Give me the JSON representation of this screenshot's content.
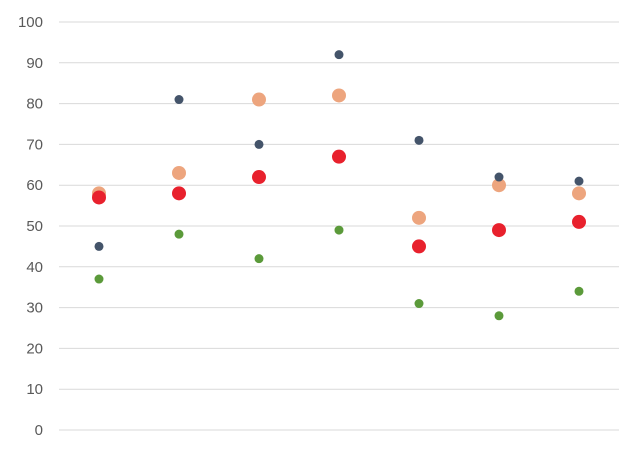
{
  "chart_data": {
    "type": "scatter",
    "title": "",
    "xlabel": "",
    "ylabel": "",
    "ylim": [
      0,
      100
    ],
    "yticks": [
      0,
      10,
      20,
      30,
      40,
      50,
      60,
      70,
      80,
      90,
      100
    ],
    "grid": true,
    "legend": "none",
    "x": [
      1,
      2,
      3,
      4,
      5,
      6,
      7
    ],
    "series": [
      {
        "color": "#eda57e",
        "marker": "large",
        "values": [
          58,
          63,
          81,
          82,
          52,
          60,
          58
        ]
      },
      {
        "color": "#e8212d",
        "marker": "large",
        "values": [
          57,
          58,
          62,
          67,
          45,
          49,
          51
        ]
      },
      {
        "color": "#44546a",
        "marker": "small",
        "values": [
          45,
          81,
          70,
          92,
          71,
          62,
          61
        ]
      },
      {
        "color": "#5b9a3a",
        "marker": "small",
        "values": [
          37,
          48,
          42,
          49,
          31,
          28,
          34
        ]
      }
    ]
  }
}
